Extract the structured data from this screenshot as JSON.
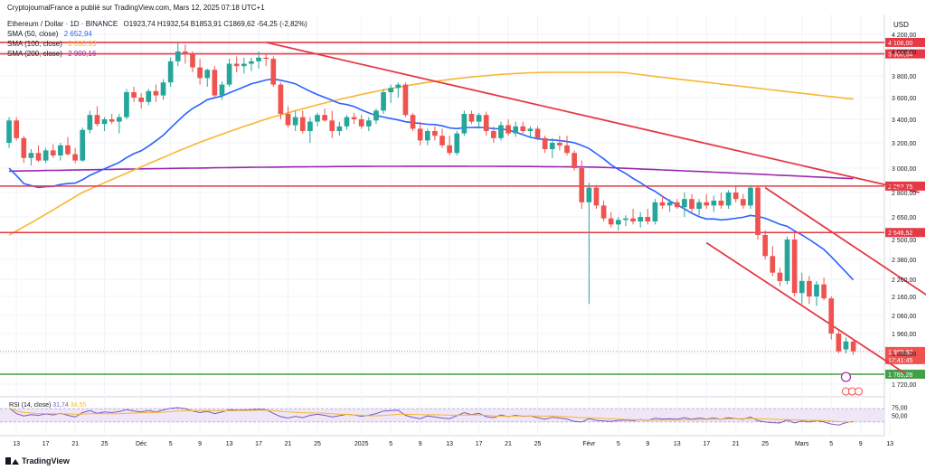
{
  "header": {
    "publisher": "CryptojournalFrance a publié sur TradingView.com, Mars 12, 2025 07:18 UTC+1",
    "symbol": "Ethereum / Dollar · 1D · BINANCE",
    "ohlc": "O1923,74  H1932,54  B1853,91  C1869,62  -54,25 (-2,82%)",
    "sma50_label": "SMA (50, close)",
    "sma50_value": "2 652,94",
    "sma100_label": "SMA (100, close)",
    "sma100_value": "3 090,93",
    "sma200_label": "SMA (200, close)",
    "sma200_value": "2 900,16"
  },
  "footer": {
    "brand": "TradingView"
  },
  "colors": {
    "up": "#26a69a",
    "down": "#ef5350",
    "sma50": "#2962ff",
    "sma100": "#f7b731",
    "sma200": "#9c27b0",
    "resistance": "#e53945",
    "support": "#43a047",
    "rsi": "#7e57c2"
  },
  "chart_data": {
    "type": "candlestick",
    "currency_label": "USD",
    "y_ticks": [
      "4 200,00",
      "4 000,00",
      "3 800,00",
      "3 600,00",
      "3 400,00",
      "3 200,00",
      "3 000,00",
      "2 800,00",
      "2 650,00",
      "2 500,00",
      "2 380,00",
      "2 260,00",
      "2 160,00",
      "2 060,00",
      "1 960,00",
      "1 860,00",
      "1 720,00"
    ],
    "y_tick_values": [
      4200,
      4000,
      3800,
      3600,
      3400,
      3200,
      3000,
      2800,
      2650,
      2500,
      2380,
      2260,
      2160,
      2060,
      1960,
      1860,
      1720
    ],
    "x_ticks": [
      "13",
      "17",
      "21",
      "25",
      "Déc",
      "5",
      "9",
      "13",
      "17",
      "21",
      "25",
      "2025",
      "5",
      "9",
      "13",
      "17",
      "21",
      "25",
      "Févr",
      "5",
      "9",
      "13",
      "17",
      "21",
      "25",
      "Mars",
      "5",
      "9",
      "13"
    ],
    "x_tick_index": [
      1,
      5,
      9,
      13,
      18,
      22,
      26,
      30,
      34,
      38,
      42,
      48,
      52,
      56,
      60,
      64,
      68,
      72,
      79,
      83,
      87,
      91,
      95,
      99,
      103,
      108,
      112,
      116,
      120
    ],
    "horizontal_levels": [
      {
        "value": 4106.0,
        "label": "4 106,00",
        "color": "#e53945"
      },
      {
        "value": 3980.94,
        "label": "3 980,94",
        "color": "#e53945"
      },
      {
        "value": 2852.75,
        "label": "2 852,75",
        "color": "#e53945"
      },
      {
        "value": 2546.52,
        "label": "2 546,52",
        "color": "#e53945"
      },
      {
        "value": 1765.28,
        "label": "1 765,28",
        "color": "#43a047"
      }
    ],
    "last_price": {
      "value": 1869.62,
      "label": "1 869,62",
      "countdown": "17:41:45"
    },
    "trend_lines": [
      {
        "from": [
          35,
          4106
        ],
        "to": [
          124,
          2800
        ]
      },
      {
        "from": [
          103,
          2840
        ],
        "to": [
          128,
          2090
        ]
      },
      {
        "from": [
          95,
          2480
        ],
        "to": [
          122,
          1770
        ]
      }
    ],
    "candles": [
      [
        3200,
        3420,
        3160,
        3390
      ],
      [
        3390,
        3420,
        3220,
        3240
      ],
      [
        3240,
        3260,
        3040,
        3080
      ],
      [
        3080,
        3150,
        3020,
        3120
      ],
      [
        3120,
        3180,
        3050,
        3060
      ],
      [
        3060,
        3160,
        3040,
        3140
      ],
      [
        3140,
        3190,
        3080,
        3100
      ],
      [
        3100,
        3200,
        3060,
        3180
      ],
      [
        3180,
        3250,
        3100,
        3110
      ],
      [
        3110,
        3160,
        3040,
        3060
      ],
      [
        3060,
        3330,
        3050,
        3310
      ],
      [
        3310,
        3480,
        3280,
        3440
      ],
      [
        3440,
        3520,
        3340,
        3360
      ],
      [
        3360,
        3420,
        3300,
        3400
      ],
      [
        3400,
        3450,
        3360,
        3380
      ],
      [
        3380,
        3450,
        3280,
        3420
      ],
      [
        3420,
        3680,
        3400,
        3650
      ],
      [
        3650,
        3700,
        3560,
        3600
      ],
      [
        3600,
        3640,
        3500,
        3560
      ],
      [
        3560,
        3680,
        3530,
        3660
      ],
      [
        3660,
        3720,
        3560,
        3620
      ],
      [
        3620,
        3770,
        3580,
        3740
      ],
      [
        3740,
        3950,
        3700,
        3920
      ],
      [
        3920,
        4106,
        3880,
        4000
      ],
      [
        4000,
        4080,
        3900,
        3980
      ],
      [
        3980,
        4000,
        3830,
        3870
      ],
      [
        3870,
        3940,
        3720,
        3780
      ],
      [
        3780,
        3860,
        3700,
        3850
      ],
      [
        3850,
        3880,
        3600,
        3620
      ],
      [
        3620,
        3750,
        3580,
        3720
      ],
      [
        3720,
        3940,
        3700,
        3900
      ],
      [
        3900,
        3960,
        3830,
        3880
      ],
      [
        3880,
        3950,
        3820,
        3900
      ],
      [
        3900,
        3950,
        3840,
        3920
      ],
      [
        3920,
        4000,
        3860,
        3950
      ],
      [
        3950,
        3980,
        3880,
        3940
      ],
      [
        3940,
        3960,
        3700,
        3720
      ],
      [
        3720,
        3740,
        3400,
        3450
      ],
      [
        3450,
        3520,
        3330,
        3350
      ],
      [
        3350,
        3480,
        3300,
        3420
      ],
      [
        3420,
        3480,
        3280,
        3300
      ],
      [
        3300,
        3420,
        3200,
        3380
      ],
      [
        3380,
        3460,
        3340,
        3440
      ],
      [
        3440,
        3500,
        3380,
        3390
      ],
      [
        3390,
        3480,
        3240,
        3300
      ],
      [
        3300,
        3380,
        3260,
        3340
      ],
      [
        3340,
        3440,
        3310,
        3420
      ],
      [
        3420,
        3460,
        3360,
        3400
      ],
      [
        3400,
        3440,
        3320,
        3340
      ],
      [
        3340,
        3420,
        3300,
        3390
      ],
      [
        3390,
        3500,
        3360,
        3480
      ],
      [
        3480,
        3680,
        3450,
        3650
      ],
      [
        3650,
        3720,
        3550,
        3690
      ],
      [
        3690,
        3740,
        3600,
        3720
      ],
      [
        3720,
        3740,
        3420,
        3440
      ],
      [
        3440,
        3460,
        3300,
        3320
      ],
      [
        3320,
        3380,
        3180,
        3220
      ],
      [
        3220,
        3320,
        3180,
        3300
      ],
      [
        3300,
        3340,
        3220,
        3260
      ],
      [
        3260,
        3320,
        3160,
        3180
      ],
      [
        3180,
        3260,
        3100,
        3120
      ],
      [
        3120,
        3300,
        3100,
        3280
      ],
      [
        3280,
        3480,
        3260,
        3450
      ],
      [
        3450,
        3480,
        3360,
        3380
      ],
      [
        3380,
        3460,
        3320,
        3440
      ],
      [
        3440,
        3470,
        3260,
        3300
      ],
      [
        3300,
        3340,
        3200,
        3240
      ],
      [
        3240,
        3380,
        3220,
        3350
      ],
      [
        3350,
        3400,
        3260,
        3280
      ],
      [
        3280,
        3380,
        3250,
        3340
      ],
      [
        3340,
        3380,
        3280,
        3300
      ],
      [
        3300,
        3340,
        3240,
        3320
      ],
      [
        3320,
        3340,
        3220,
        3240
      ],
      [
        3240,
        3260,
        3120,
        3150
      ],
      [
        3150,
        3240,
        3080,
        3200
      ],
      [
        3200,
        3260,
        3140,
        3180
      ],
      [
        3180,
        3260,
        3100,
        3120
      ],
      [
        3120,
        3140,
        2980,
        3000
      ],
      [
        3000,
        3060,
        2700,
        2740
      ],
      [
        2740,
        2880,
        2120,
        2840
      ],
      [
        2840,
        2860,
        2700,
        2720
      ],
      [
        2720,
        2750,
        2620,
        2640
      ],
      [
        2640,
        2680,
        2580,
        2600
      ],
      [
        2600,
        2650,
        2560,
        2630
      ],
      [
        2630,
        2660,
        2590,
        2640
      ],
      [
        2640,
        2700,
        2600,
        2620
      ],
      [
        2620,
        2680,
        2580,
        2650
      ],
      [
        2650,
        2700,
        2600,
        2620
      ],
      [
        2620,
        2760,
        2600,
        2740
      ],
      [
        2740,
        2780,
        2700,
        2720
      ],
      [
        2720,
        2760,
        2680,
        2740
      ],
      [
        2740,
        2760,
        2700,
        2710
      ],
      [
        2710,
        2800,
        2650,
        2760
      ],
      [
        2760,
        2790,
        2680,
        2700
      ],
      [
        2700,
        2760,
        2660,
        2740
      ],
      [
        2740,
        2790,
        2700,
        2720
      ],
      [
        2720,
        2780,
        2680,
        2750
      ],
      [
        2750,
        2800,
        2700,
        2720
      ],
      [
        2720,
        2820,
        2700,
        2800
      ],
      [
        2800,
        2850,
        2740,
        2760
      ],
      [
        2760,
        2790,
        2700,
        2720
      ],
      [
        2720,
        2860,
        2700,
        2840
      ],
      [
        2840,
        2850,
        2500,
        2530
      ],
      [
        2530,
        2560,
        2380,
        2400
      ],
      [
        2400,
        2460,
        2280,
        2300
      ],
      [
        2300,
        2330,
        2220,
        2250
      ],
      [
        2250,
        2520,
        2230,
        2500
      ],
      [
        2500,
        2540,
        2160,
        2180
      ],
      [
        2180,
        2300,
        2120,
        2250
      ],
      [
        2250,
        2280,
        2120,
        2160
      ],
      [
        2160,
        2250,
        2110,
        2230
      ],
      [
        2230,
        2270,
        2140,
        2150
      ],
      [
        2150,
        2160,
        1930,
        1960
      ],
      [
        1960,
        1980,
        1860,
        1870
      ],
      [
        1880,
        1940,
        1860,
        1920
      ],
      [
        1920,
        1933,
        1854,
        1870
      ]
    ],
    "rsi": {
      "label": "RSI (14, close)",
      "value_label": "31,74",
      "ma_value_label": "34,55",
      "ticks": [
        "75,00",
        "50,00"
      ],
      "tick_values": [
        75,
        50
      ],
      "band": [
        30,
        70
      ],
      "values": [
        72,
        55,
        48,
        52,
        50,
        54,
        51,
        56,
        50,
        45,
        58,
        64,
        56,
        60,
        58,
        61,
        67,
        63,
        60,
        64,
        60,
        66,
        71,
        73,
        70,
        63,
        58,
        62,
        55,
        60,
        67,
        65,
        66,
        67,
        68,
        67,
        56,
        46,
        42,
        47,
        43,
        50,
        53,
        50,
        45,
        49,
        53,
        51,
        47,
        50,
        55,
        63,
        64,
        65,
        50,
        44,
        40,
        48,
        45,
        42,
        40,
        49,
        58,
        52,
        56,
        46,
        43,
        51,
        46,
        50,
        47,
        48,
        43,
        38,
        44,
        42,
        39,
        32,
        30,
        40,
        35,
        33,
        32,
        35,
        36,
        34,
        37,
        35,
        41,
        39,
        40,
        38,
        43,
        38,
        42,
        39,
        42,
        38,
        43,
        40,
        38,
        45,
        34,
        30,
        28,
        27,
        36,
        27,
        33,
        30,
        34,
        30,
        24,
        21,
        28,
        32
      ]
    }
  }
}
